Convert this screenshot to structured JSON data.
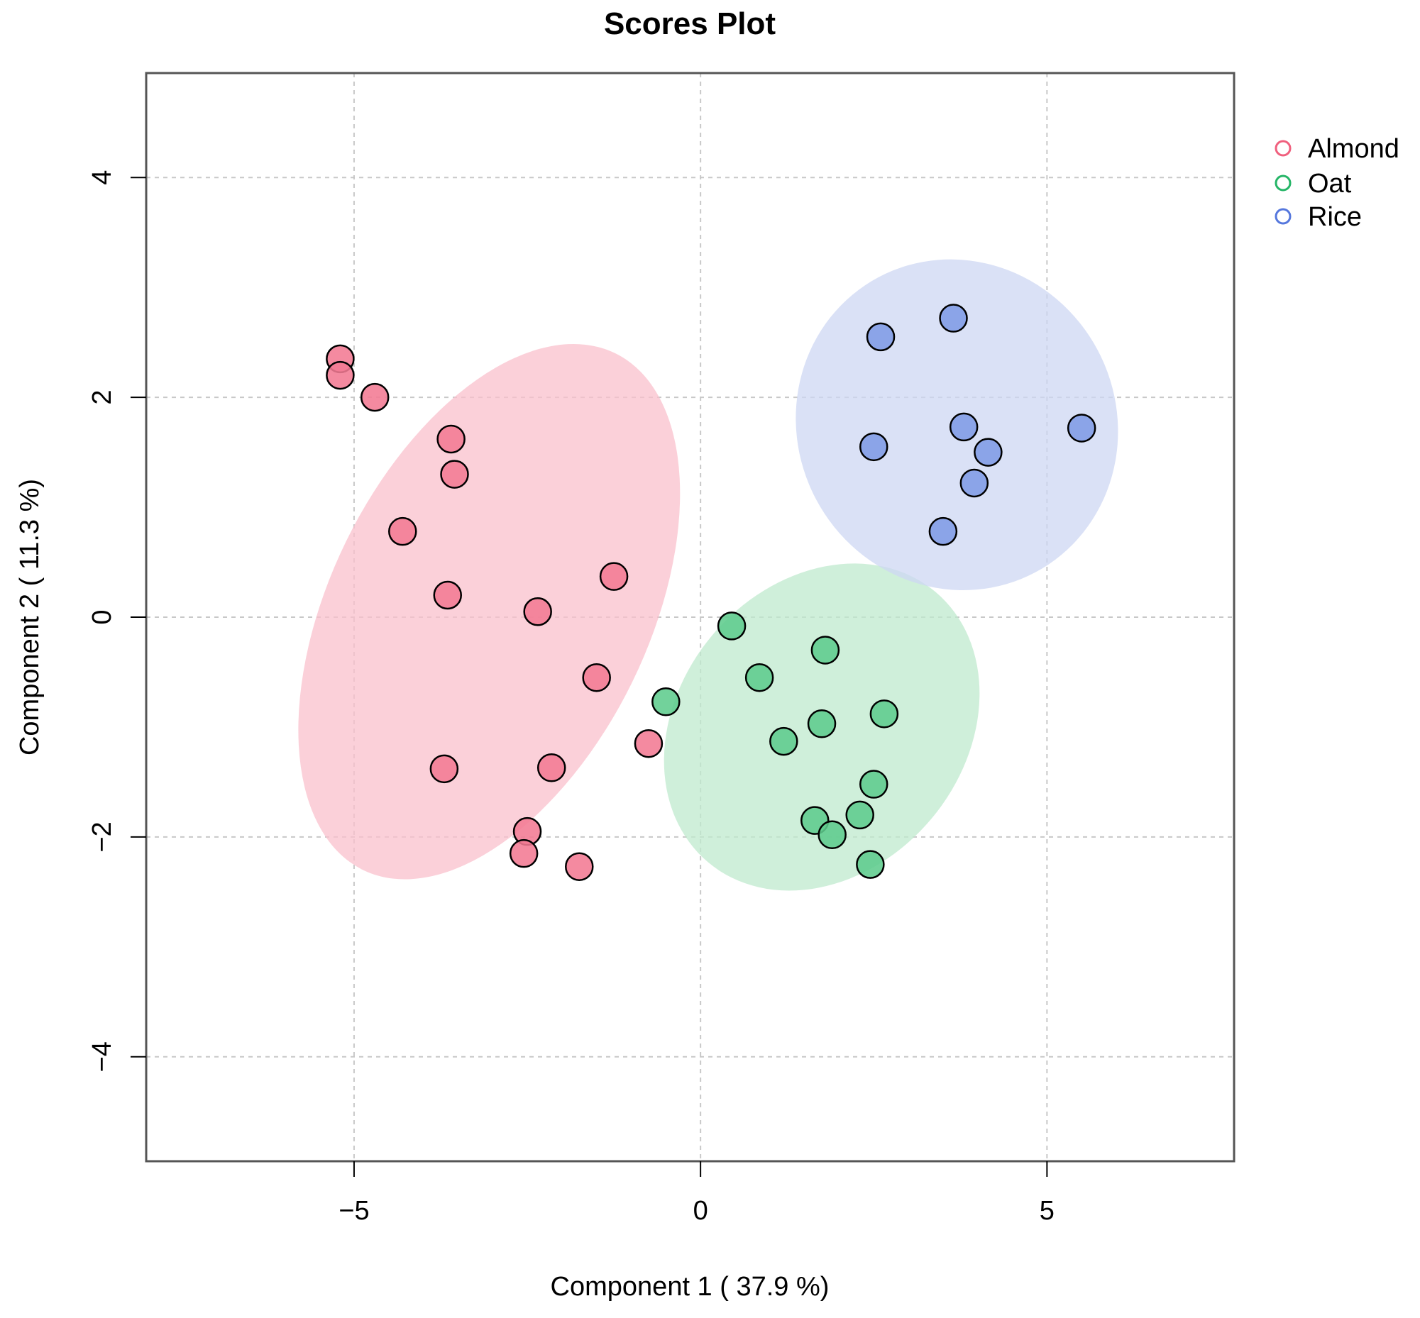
{
  "chart_data": {
    "type": "scatter",
    "title": "Scores Plot",
    "xlabel": "Component 1 ( 37.9 %)",
    "ylabel": "Component 2 ( 11.3 %)",
    "xlim": [
      -8,
      7.7
    ],
    "ylim": [
      -4.95,
      4.95
    ],
    "xticks": [
      -5,
      0,
      5
    ],
    "yticks": [
      -4,
      -2,
      0,
      2,
      4
    ],
    "xtick_labels": [
      "−5",
      "0",
      "5"
    ],
    "ytick_labels": [
      "−4",
      "−2",
      "0",
      "2",
      "4"
    ],
    "grid": true,
    "legend_position": "right",
    "series": [
      {
        "name": "Almond",
        "color": "#f0607e",
        "fill": "#f27a93",
        "ellipse_fill": "#f9c0cc",
        "ellipse": {
          "cx": -3.05,
          "cy": 0.05,
          "rx": 4.15,
          "ry": 1.45,
          "angle_deg": -64
        },
        "points": [
          [
            -5.2,
            2.35
          ],
          [
            -5.2,
            2.2
          ],
          [
            -4.7,
            2.0
          ],
          [
            -3.6,
            1.62
          ],
          [
            -3.55,
            1.3
          ],
          [
            -4.3,
            0.78
          ],
          [
            -3.65,
            0.2
          ],
          [
            -2.35,
            0.05
          ],
          [
            -1.25,
            0.37
          ],
          [
            -1.5,
            -0.55
          ],
          [
            -0.75,
            -1.15
          ],
          [
            -3.7,
            -1.38
          ],
          [
            -2.15,
            -1.37
          ],
          [
            -2.5,
            -1.95
          ],
          [
            -2.55,
            -2.15
          ],
          [
            -1.75,
            -2.27
          ]
        ]
      },
      {
        "name": "Oat",
        "color": "#25b567",
        "fill": "#5fcc8d",
        "ellipse_fill": "#bfeacd",
        "ellipse": {
          "cx": 1.75,
          "cy": -1.0,
          "rx": 2.55,
          "ry": 1.3,
          "angle_deg": -50
        },
        "points": [
          [
            0.45,
            -0.08
          ],
          [
            1.8,
            -0.3
          ],
          [
            0.85,
            -0.55
          ],
          [
            -0.5,
            -0.77
          ],
          [
            2.65,
            -0.88
          ],
          [
            1.75,
            -0.97
          ],
          [
            1.2,
            -1.13
          ],
          [
            2.5,
            -1.52
          ],
          [
            1.65,
            -1.85
          ],
          [
            2.3,
            -1.8
          ],
          [
            1.9,
            -1.98
          ],
          [
            2.45,
            -2.25
          ]
        ]
      },
      {
        "name": "Rice",
        "color": "#5577dd",
        "fill": "#7f9be6",
        "ellipse_fill": "#cdd7f3",
        "ellipse": {
          "cx": 3.7,
          "cy": 1.75,
          "rx": 2.3,
          "ry": 1.52,
          "angle_deg": -28
        },
        "points": [
          [
            3.65,
            2.72
          ],
          [
            2.6,
            2.55
          ],
          [
            3.8,
            1.73
          ],
          [
            5.5,
            1.72
          ],
          [
            2.5,
            1.55
          ],
          [
            4.15,
            1.5
          ],
          [
            3.95,
            1.22
          ],
          [
            3.5,
            0.78
          ]
        ]
      }
    ]
  }
}
